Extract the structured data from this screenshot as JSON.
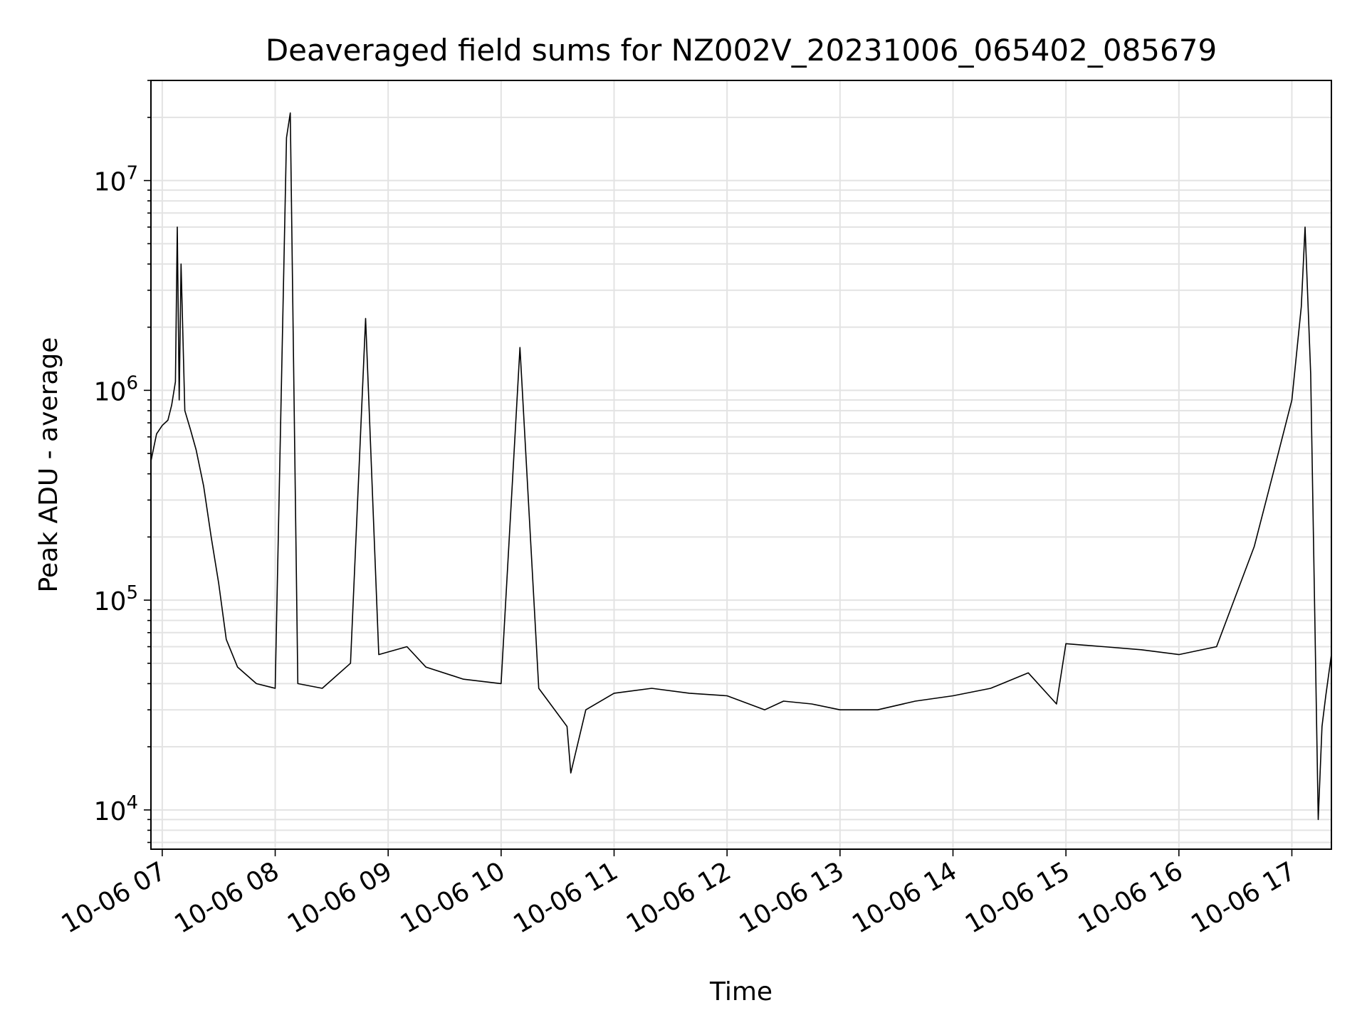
{
  "chart_data": {
    "type": "line",
    "title": "Deaveraged field sums for NZ002V_20231006_065402_085679",
    "xlabel": "Time",
    "ylabel": "Peak ADU - average",
    "yscale": "log",
    "ylim": [
      6500,
      30000000
    ],
    "xlim": [
      "2023-10-06T06:54",
      "2023-10-06T17:21"
    ],
    "grid": true,
    "line_color": "#000000",
    "x_ticks": [
      {
        "t": "2023-10-06T07:00",
        "label": "10-06 07"
      },
      {
        "t": "2023-10-06T08:00",
        "label": "10-06 08"
      },
      {
        "t": "2023-10-06T09:00",
        "label": "10-06 09"
      },
      {
        "t": "2023-10-06T10:00",
        "label": "10-06 10"
      },
      {
        "t": "2023-10-06T11:00",
        "label": "10-06 11"
      },
      {
        "t": "2023-10-06T12:00",
        "label": "10-06 12"
      },
      {
        "t": "2023-10-06T13:00",
        "label": "10-06 13"
      },
      {
        "t": "2023-10-06T14:00",
        "label": "10-06 14"
      },
      {
        "t": "2023-10-06T15:00",
        "label": "10-06 15"
      },
      {
        "t": "2023-10-06T16:00",
        "label": "10-06 16"
      },
      {
        "t": "2023-10-06T17:00",
        "label": "10-06 17"
      }
    ],
    "y_ticks": [
      {
        "value": 10000,
        "base": "10",
        "exp": "4"
      },
      {
        "value": 100000,
        "base": "10",
        "exp": "5"
      },
      {
        "value": 1000000,
        "base": "10",
        "exp": "6"
      },
      {
        "value": 10000000,
        "base": "10",
        "exp": "7"
      }
    ],
    "series": [
      {
        "points": [
          [
            "2023-10-06T06:54",
            460000
          ],
          [
            "2023-10-06T06:57",
            620000
          ],
          [
            "2023-10-06T07:00",
            680000
          ],
          [
            "2023-10-06T07:03",
            720000
          ],
          [
            "2023-10-06T07:05",
            850000
          ],
          [
            "2023-10-06T07:07",
            1100000
          ],
          [
            "2023-10-06T07:08",
            6000000
          ],
          [
            "2023-10-06T07:09",
            900000
          ],
          [
            "2023-10-06T07:10",
            4000000
          ],
          [
            "2023-10-06T07:12",
            800000
          ],
          [
            "2023-10-06T07:15",
            650000
          ],
          [
            "2023-10-06T07:18",
            520000
          ],
          [
            "2023-10-06T07:22",
            350000
          ],
          [
            "2023-10-06T07:26",
            200000
          ],
          [
            "2023-10-06T07:30",
            120000
          ],
          [
            "2023-10-06T07:34",
            65000
          ],
          [
            "2023-10-06T07:40",
            48000
          ],
          [
            "2023-10-06T07:50",
            40000
          ],
          [
            "2023-10-06T08:00",
            38000
          ],
          [
            "2023-10-06T08:06",
            16000000
          ],
          [
            "2023-10-06T08:08",
            21000000
          ],
          [
            "2023-10-06T08:12",
            40000
          ],
          [
            "2023-10-06T08:25",
            38000
          ],
          [
            "2023-10-06T08:40",
            50000
          ],
          [
            "2023-10-06T08:48",
            2200000
          ],
          [
            "2023-10-06T08:55",
            55000
          ],
          [
            "2023-10-06T09:10",
            60000
          ],
          [
            "2023-10-06T09:20",
            48000
          ],
          [
            "2023-10-06T09:40",
            42000
          ],
          [
            "2023-10-06T10:00",
            40000
          ],
          [
            "2023-10-06T10:10",
            1600000
          ],
          [
            "2023-10-06T10:20",
            38000
          ],
          [
            "2023-10-06T10:35",
            25000
          ],
          [
            "2023-10-06T10:37",
            15000
          ],
          [
            "2023-10-06T10:45",
            30000
          ],
          [
            "2023-10-06T11:00",
            36000
          ],
          [
            "2023-10-06T11:20",
            38000
          ],
          [
            "2023-10-06T11:40",
            36000
          ],
          [
            "2023-10-06T12:00",
            35000
          ],
          [
            "2023-10-06T12:20",
            30000
          ],
          [
            "2023-10-06T12:30",
            33000
          ],
          [
            "2023-10-06T12:45",
            32000
          ],
          [
            "2023-10-06T13:00",
            30000
          ],
          [
            "2023-10-06T13:20",
            30000
          ],
          [
            "2023-10-06T13:40",
            33000
          ],
          [
            "2023-10-06T14:00",
            35000
          ],
          [
            "2023-10-06T14:20",
            38000
          ],
          [
            "2023-10-06T14:40",
            45000
          ],
          [
            "2023-10-06T14:55",
            32000
          ],
          [
            "2023-10-06T15:00",
            62000
          ],
          [
            "2023-10-06T15:20",
            60000
          ],
          [
            "2023-10-06T15:40",
            58000
          ],
          [
            "2023-10-06T16:00",
            55000
          ],
          [
            "2023-10-06T16:20",
            60000
          ],
          [
            "2023-10-06T16:40",
            180000
          ],
          [
            "2023-10-06T16:50",
            400000
          ],
          [
            "2023-10-06T17:00",
            900000
          ],
          [
            "2023-10-06T17:05",
            2500000
          ],
          [
            "2023-10-06T17:07",
            6000000
          ],
          [
            "2023-10-06T17:10",
            1200000
          ],
          [
            "2023-10-06T17:14",
            9000
          ],
          [
            "2023-10-06T17:16",
            25000
          ],
          [
            "2023-10-06T17:18",
            35000
          ],
          [
            "2023-10-06T17:21",
            55000
          ]
        ]
      }
    ]
  }
}
